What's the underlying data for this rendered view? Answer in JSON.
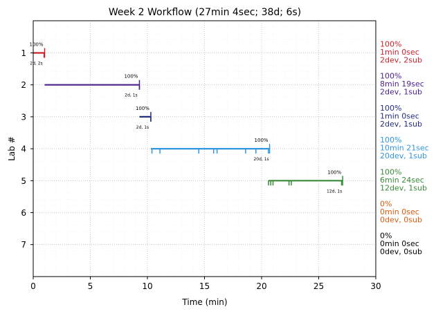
{
  "chart_data": {
    "type": "timeline",
    "title": "Week 2 Workflow (27min 4sec; 38d; 6s)",
    "xlabel": "Time (min)",
    "ylabel": "Lab #",
    "xlim": [
      0,
      30
    ],
    "ylim": [
      0.5,
      8
    ],
    "xticks": [
      0,
      5,
      10,
      15,
      20,
      25,
      30
    ],
    "grid": true,
    "labs": [
      {
        "lab": "1",
        "start": 0.0,
        "end": 1.0,
        "color": "#c8232c",
        "pct": "100%",
        "small": "2d, 2s",
        "commits": [
          0.95
        ],
        "side": [
          "100%",
          "1min 0sec",
          "2dev, 2sub"
        ]
      },
      {
        "lab": "2",
        "start": 1.0,
        "end": 9.3,
        "color": "#4b1f8c",
        "pct": "100%",
        "small": "2d, 1s",
        "commits": [
          9.3
        ],
        "side": [
          "100%",
          "8min 19sec",
          "2dev, 1sub"
        ]
      },
      {
        "lab": "3",
        "start": 9.3,
        "end": 10.3,
        "color": "#232d80",
        "pct": "100%",
        "small": "2d, 1s",
        "commits": [
          10.3
        ],
        "side": [
          "100%",
          "1min 0sec",
          "2dev, 1sub"
        ]
      },
      {
        "lab": "4",
        "start": 10.3,
        "end": 20.7,
        "color": "#2f96e0",
        "pct": "100%",
        "small": "20d, 1s",
        "commits": [
          10.4,
          11.1,
          14.5,
          15.8,
          16.1,
          18.6,
          19.5,
          20.6
        ],
        "side": [
          "100%",
          "10min 21sec",
          "20dev, 1sub"
        ]
      },
      {
        "lab": "5",
        "start": 20.6,
        "end": 27.1,
        "color": "#3a8a3a",
        "pct": "100%",
        "small": "12d, 1s",
        "commits": [
          20.6,
          20.8,
          21.0,
          22.4,
          22.6,
          27.0
        ],
        "side": [
          "100%",
          "6min 24sec",
          "12dev, 1sub"
        ]
      },
      {
        "lab": "6",
        "start": null,
        "end": null,
        "color": "#d95a10",
        "pct": "",
        "small": "",
        "commits": [],
        "side": [
          "0%",
          "0min 0sec",
          "0dev, 0sub"
        ]
      },
      {
        "lab": "7",
        "start": null,
        "end": null,
        "color": "#000000",
        "pct": "",
        "small": "",
        "commits": [],
        "side": [
          "0%",
          "0min 0sec",
          "0dev, 0sub"
        ]
      }
    ]
  }
}
